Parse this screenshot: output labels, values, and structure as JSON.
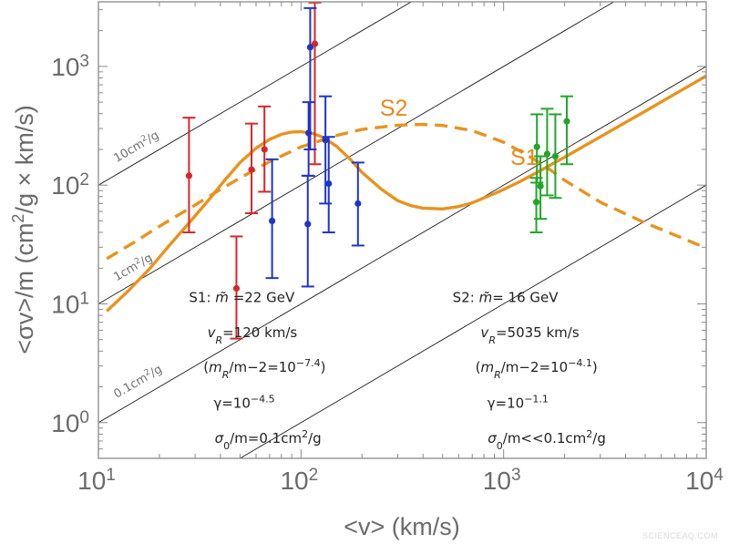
{
  "chart_data": {
    "type": "scatter",
    "xlabel": "<v> (km/s)",
    "ylabel_parts": {
      "pre": "<σv>/m (cm",
      "sup": "2",
      "post": "/g × km/s)"
    },
    "xscale": "log",
    "yscale": "log",
    "xlim": [
      10,
      10000
    ],
    "ylim": [
      0.5,
      3500
    ],
    "x_ticks": [
      10,
      100,
      1000,
      10000
    ],
    "y_ticks": [
      1,
      10,
      100,
      1000
    ],
    "x_tick_labels": [
      {
        "base": "10",
        "exp": "1"
      },
      {
        "base": "10",
        "exp": "2"
      },
      {
        "base": "10",
        "exp": "3"
      },
      {
        "base": "10",
        "exp": "4"
      }
    ],
    "y_tick_labels": [
      {
        "base": "10",
        "exp": "0"
      },
      {
        "base": "10",
        "exp": "1"
      },
      {
        "base": "10",
        "exp": "2"
      },
      {
        "base": "10",
        "exp": "3"
      }
    ],
    "reference_lines": [
      {
        "coef": 1.0,
        "label": {
          "pre": "10cm",
          "sup": "2",
          "post": "/g"
        },
        "label_x": 12.3,
        "label_y": 155
      },
      {
        "coef": 0.1,
        "label": {
          "pre": "1cm",
          "sup": "2",
          "post": "/g"
        },
        "label_x": 12.3,
        "label_y": 15.5
      },
      {
        "coef": 0.01,
        "label": {
          "pre": "0.1cm",
          "sup": "2",
          "post": "/g"
        },
        "label_x": 12.3,
        "label_y": 1.6
      },
      {
        "coef": 10.0,
        "label": null
      }
    ],
    "curves": [
      {
        "name": "S1",
        "style": "solid",
        "color": "#e8931f",
        "label_x": 1080,
        "label_y": 148,
        "points": [
          [
            11,
            8.7
          ],
          [
            14,
            12.8
          ],
          [
            18,
            20
          ],
          [
            22,
            30
          ],
          [
            28,
            48
          ],
          [
            35,
            75
          ],
          [
            42,
            110
          ],
          [
            50,
            155
          ],
          [
            60,
            205
          ],
          [
            70,
            243
          ],
          [
            80,
            268
          ],
          [
            90,
            280
          ],
          [
            100,
            282
          ],
          [
            115,
            272
          ],
          [
            130,
            250
          ],
          [
            150,
            212
          ],
          [
            175,
            165
          ],
          [
            200,
            128
          ],
          [
            250,
            92
          ],
          [
            300,
            74
          ],
          [
            350,
            67
          ],
          [
            400,
            64
          ],
          [
            500,
            63
          ],
          [
            600,
            66
          ],
          [
            700,
            71
          ],
          [
            800,
            78
          ],
          [
            900,
            85
          ],
          [
            1000,
            92
          ],
          [
            1200,
            107
          ],
          [
            1500,
            131
          ],
          [
            2000,
            172
          ],
          [
            3000,
            255
          ],
          [
            5000,
            420
          ],
          [
            7000,
            585
          ],
          [
            10000,
            830
          ]
        ]
      },
      {
        "name": "S2",
        "style": "dashed",
        "color": "#e8931f",
        "label_x": 245,
        "label_y": 385,
        "points": [
          [
            11,
            24
          ],
          [
            15,
            33
          ],
          [
            20,
            45
          ],
          [
            30,
            68
          ],
          [
            40,
            92
          ],
          [
            50,
            115
          ],
          [
            70,
            158
          ],
          [
            100,
            210
          ],
          [
            150,
            262
          ],
          [
            200,
            295
          ],
          [
            300,
            320
          ],
          [
            400,
            325
          ],
          [
            500,
            318
          ],
          [
            700,
            288
          ],
          [
            1000,
            230
          ],
          [
            1300,
            180
          ],
          [
            1600,
            145
          ],
          [
            2000,
            110
          ],
          [
            3000,
            72
          ],
          [
            5000,
            48
          ],
          [
            7000,
            38
          ],
          [
            10000,
            29.5
          ]
        ]
      }
    ],
    "series": [
      {
        "color": "#d62728",
        "points": [
          {
            "x": 28,
            "y": 120,
            "lo": 40,
            "hi": 370
          },
          {
            "x": 48,
            "y": 13.5,
            "lo": 5.1,
            "hi": 37
          },
          {
            "x": 57,
            "y": 135,
            "lo": 58,
            "hi": 330
          },
          {
            "x": 66,
            "y": 200,
            "lo": 88,
            "hi": 460
          },
          {
            "x": 117,
            "y": 1550,
            "lo": 150,
            "hi": 3450
          }
        ]
      },
      {
        "color": "#1f35c8",
        "points": [
          {
            "x": 72,
            "y": 50,
            "lo": 16.5,
            "hi": 165
          },
          {
            "x": 108,
            "y": 47,
            "lo": 14,
            "hi": 120
          },
          {
            "x": 109,
            "y": 275,
            "lo": 120,
            "hi": 500
          },
          {
            "x": 111,
            "y": 1450,
            "lo": 200,
            "hi": 3100
          },
          {
            "x": 132,
            "y": 240,
            "lo": 70,
            "hi": 560
          },
          {
            "x": 137,
            "y": 103,
            "lo": 40,
            "hi": 255
          },
          {
            "x": 191,
            "y": 70,
            "lo": 31,
            "hi": 155
          }
        ]
      },
      {
        "color": "#22a52a",
        "points": [
          {
            "x": 1450,
            "y": 72,
            "lo": 40,
            "hi": 115
          },
          {
            "x": 1460,
            "y": 210,
            "lo": 105,
            "hi": 395
          },
          {
            "x": 1520,
            "y": 98,
            "lo": 52,
            "hi": 175
          },
          {
            "x": 1640,
            "y": 183,
            "lo": 82,
            "hi": 440
          },
          {
            "x": 1800,
            "y": 175,
            "lo": 78,
            "hi": 395
          },
          {
            "x": 2050,
            "y": 345,
            "lo": 150,
            "hi": 560
          }
        ]
      }
    ],
    "annotations": {
      "s1": [
        {
          "x": 28,
          "y": 10.4,
          "html": "S1: <tspan font-style='italic'>m̃</tspan> =22 GeV"
        },
        {
          "x": 34.5,
          "y": 5.25,
          "html": "<tspan font-style='italic'>v</tspan><tspan font-style='italic' baseline-shift='sub' font-size='11'>R</tspan>=120 km/s"
        },
        {
          "x": 33,
          "y": 2.68,
          "html": "(<tspan font-style='italic'>m</tspan><tspan font-style='italic' baseline-shift='sub' font-size='11'>R</tspan>/m−2=10<tspan baseline-shift='super' font-size='11'>−7.4</tspan>)"
        },
        {
          "x": 37,
          "y": 1.33,
          "html": "γ=10<tspan baseline-shift='super' font-size='11'>−4.5</tspan>"
        },
        {
          "x": 37.5,
          "y": 0.675,
          "html": "<tspan font-style='italic'>σ</tspan><tspan baseline-shift='sub' font-size='11'>0</tspan>/m=0.1cm<tspan baseline-shift='super' font-size='11'>2</tspan>/g"
        }
      ],
      "s2": [
        {
          "x": 560,
          "y": 10.4,
          "html": "S2: <tspan font-style='italic'>m̃</tspan>= 16 GeV"
        },
        {
          "x": 770,
          "y": 5.25,
          "html": "<tspan font-style='italic'>v</tspan><tspan font-style='italic' baseline-shift='sub' font-size='11'>R</tspan>=5035 km/s"
        },
        {
          "x": 725,
          "y": 2.68,
          "html": "(<tspan font-style='italic'>m</tspan><tspan font-style='italic' baseline-shift='sub' font-size='11'>R</tspan>/m−2=10<tspan baseline-shift='super' font-size='11'>−4.1</tspan>)"
        },
        {
          "x": 830,
          "y": 1.33,
          "html": "γ=10<tspan baseline-shift='super' font-size='11'>−1.1</tspan>"
        },
        {
          "x": 835,
          "y": 0.675,
          "html": "<tspan font-style='italic'>σ</tspan><tspan baseline-shift='sub' font-size='11'>0</tspan>/m&lt;&lt;0.1cm<tspan baseline-shift='super' font-size='11'>2</tspan>/g"
        }
      ]
    }
  },
  "watermark": "SCIENCEAQ.COM"
}
